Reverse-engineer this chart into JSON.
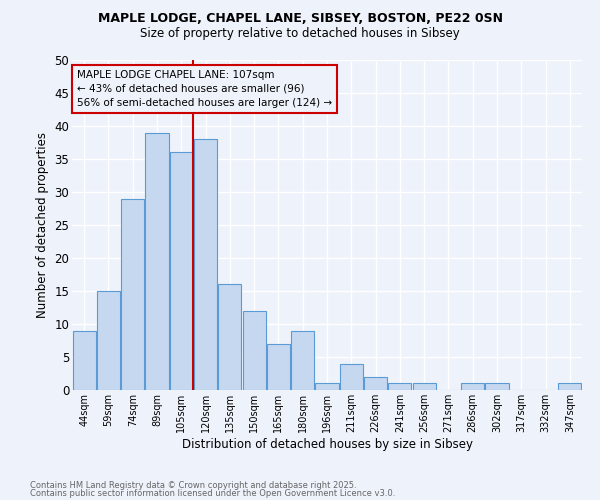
{
  "title_line1": "MAPLE LODGE, CHAPEL LANE, SIBSEY, BOSTON, PE22 0SN",
  "title_line2": "Size of property relative to detached houses in Sibsey",
  "xlabel": "Distribution of detached houses by size in Sibsey",
  "ylabel": "Number of detached properties",
  "categories": [
    "44sqm",
    "59sqm",
    "74sqm",
    "89sqm",
    "105sqm",
    "120sqm",
    "135sqm",
    "150sqm",
    "165sqm",
    "180sqm",
    "196sqm",
    "211sqm",
    "226sqm",
    "241sqm",
    "256sqm",
    "271sqm",
    "286sqm",
    "302sqm",
    "317sqm",
    "332sqm",
    "347sqm"
  ],
  "values": [
    9,
    15,
    29,
    39,
    36,
    38,
    16,
    12,
    7,
    9,
    1,
    4,
    2,
    1,
    1,
    0,
    1,
    1,
    0,
    0,
    1
  ],
  "bar_color": "#c5d8f0",
  "bar_edgecolor": "#5b9bd5",
  "background_color": "#eef2fa",
  "grid_color": "#ffffff",
  "red_line_x": 4.5,
  "red_line_color": "#cc0000",
  "annotation_text": "MAPLE LODGE CHAPEL LANE: 107sqm\n← 43% of detached houses are smaller (96)\n56% of semi-detached houses are larger (124) →",
  "annotation_box_edgecolor": "#cc0000",
  "footer_line1": "Contains HM Land Registry data © Crown copyright and database right 2025.",
  "footer_line2": "Contains public sector information licensed under the Open Government Licence v3.0.",
  "ylim": [
    0,
    50
  ],
  "yticks": [
    0,
    5,
    10,
    15,
    20,
    25,
    30,
    35,
    40,
    45,
    50
  ]
}
